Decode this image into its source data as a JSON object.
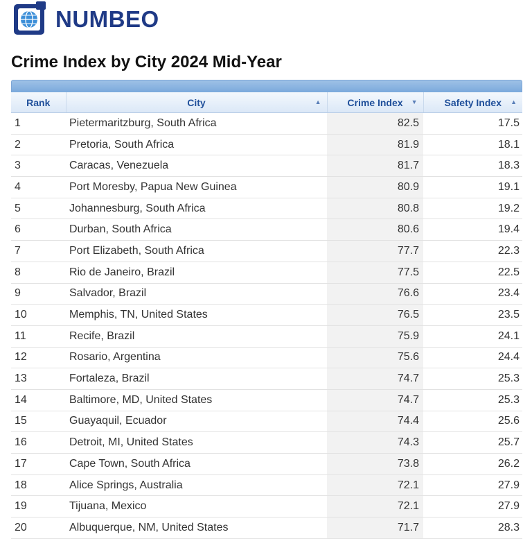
{
  "brand": {
    "name": "NUMBEO",
    "logo_icon": "numbeo-logo-icon",
    "color": "#1f3a86"
  },
  "page": {
    "title": "Crime Index by City 2024 Mid-Year"
  },
  "table": {
    "headers": {
      "rank": "Rank",
      "city": "City",
      "crime": "Crime Index",
      "safety": "Safety Index"
    },
    "sort_icons": {
      "city": "▲",
      "crime": "▼",
      "safety": "▲"
    },
    "rows": [
      {
        "rank": "1",
        "city": "Pietermaritzburg, South Africa",
        "crime": "82.5",
        "safety": "17.5"
      },
      {
        "rank": "2",
        "city": "Pretoria, South Africa",
        "crime": "81.9",
        "safety": "18.1"
      },
      {
        "rank": "3",
        "city": "Caracas, Venezuela",
        "crime": "81.7",
        "safety": "18.3"
      },
      {
        "rank": "4",
        "city": "Port Moresby, Papua New Guinea",
        "crime": "80.9",
        "safety": "19.1"
      },
      {
        "rank": "5",
        "city": "Johannesburg, South Africa",
        "crime": "80.8",
        "safety": "19.2"
      },
      {
        "rank": "6",
        "city": "Durban, South Africa",
        "crime": "80.6",
        "safety": "19.4"
      },
      {
        "rank": "7",
        "city": "Port Elizabeth, South Africa",
        "crime": "77.7",
        "safety": "22.3"
      },
      {
        "rank": "8",
        "city": "Rio de Janeiro, Brazil",
        "crime": "77.5",
        "safety": "22.5"
      },
      {
        "rank": "9",
        "city": "Salvador, Brazil",
        "crime": "76.6",
        "safety": "23.4"
      },
      {
        "rank": "10",
        "city": "Memphis, TN, United States",
        "crime": "76.5",
        "safety": "23.5"
      },
      {
        "rank": "11",
        "city": "Recife, Brazil",
        "crime": "75.9",
        "safety": "24.1"
      },
      {
        "rank": "12",
        "city": "Rosario, Argentina",
        "crime": "75.6",
        "safety": "24.4"
      },
      {
        "rank": "13",
        "city": "Fortaleza, Brazil",
        "crime": "74.7",
        "safety": "25.3"
      },
      {
        "rank": "14",
        "city": "Baltimore, MD, United States",
        "crime": "74.7",
        "safety": "25.3"
      },
      {
        "rank": "15",
        "city": "Guayaquil, Ecuador",
        "crime": "74.4",
        "safety": "25.6"
      },
      {
        "rank": "16",
        "city": "Detroit, MI, United States",
        "crime": "74.3",
        "safety": "25.7"
      },
      {
        "rank": "17",
        "city": "Cape Town, South Africa",
        "crime": "73.8",
        "safety": "26.2"
      },
      {
        "rank": "18",
        "city": "Alice Springs, Australia",
        "crime": "72.1",
        "safety": "27.9"
      },
      {
        "rank": "19",
        "city": "Tijuana, Mexico",
        "crime": "72.1",
        "safety": "27.9"
      },
      {
        "rank": "20",
        "city": "Albuquerque, NM, United States",
        "crime": "71.7",
        "safety": "28.3"
      }
    ]
  }
}
